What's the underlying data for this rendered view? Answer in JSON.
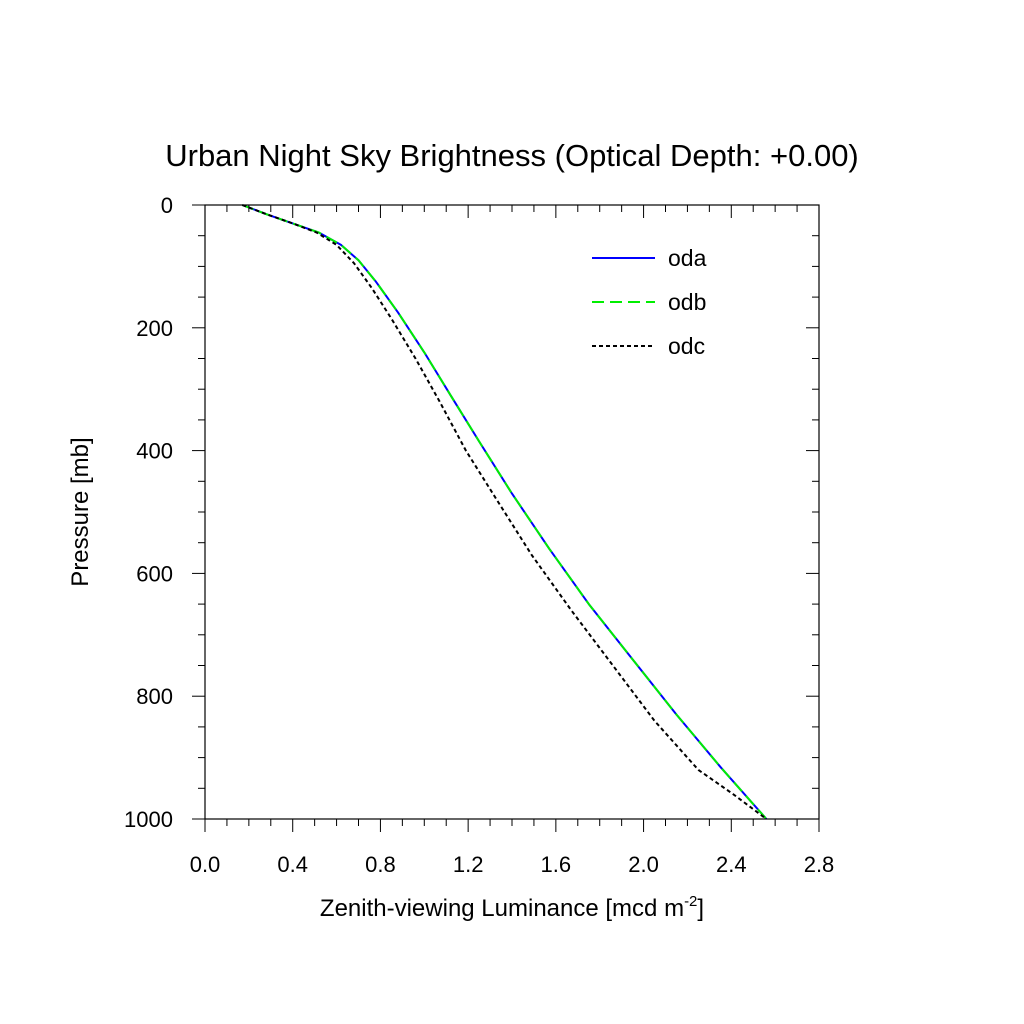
{
  "chart_data": {
    "type": "line",
    "title": "Urban Night Sky Brightness (Optical Depth: +0.00)",
    "xlabel": {
      "main": "Zenith-viewing Luminance [mcd m",
      "sup": "-2",
      "end": "]"
    },
    "ylabel": "Pressure [mb]",
    "xlim": [
      0.0,
      2.8
    ],
    "ylim": [
      0,
      1000
    ],
    "y_reversed": true,
    "x_ticks": [
      "0.0",
      "0.4",
      "0.8",
      "1.2",
      "1.6",
      "2.0",
      "2.4",
      "2.8"
    ],
    "y_ticks": [
      "0",
      "200",
      "400",
      "600",
      "800",
      "1000"
    ],
    "grid": false,
    "legend_position": "top-right",
    "series": [
      {
        "name": "oda",
        "color": "#0000ff",
        "dash": "solid",
        "points": [
          [
            0.17,
            0
          ],
          [
            0.28,
            15
          ],
          [
            0.4,
            30
          ],
          [
            0.52,
            45
          ],
          [
            0.62,
            65
          ],
          [
            0.7,
            90
          ],
          [
            0.78,
            125
          ],
          [
            0.88,
            175
          ],
          [
            1.0,
            240
          ],
          [
            1.12,
            310
          ],
          [
            1.25,
            385
          ],
          [
            1.4,
            470
          ],
          [
            1.57,
            560
          ],
          [
            1.75,
            650
          ],
          [
            1.95,
            740
          ],
          [
            2.15,
            830
          ],
          [
            2.35,
            915
          ],
          [
            2.56,
            1000
          ]
        ]
      },
      {
        "name": "odb",
        "color": "#00ee00",
        "dash": "dashed",
        "points": [
          [
            0.17,
            0
          ],
          [
            0.28,
            15
          ],
          [
            0.4,
            30
          ],
          [
            0.52,
            45
          ],
          [
            0.62,
            65
          ],
          [
            0.7,
            90
          ],
          [
            0.78,
            125
          ],
          [
            0.88,
            175
          ],
          [
            1.0,
            240
          ],
          [
            1.12,
            310
          ],
          [
            1.25,
            385
          ],
          [
            1.4,
            470
          ],
          [
            1.57,
            560
          ],
          [
            1.75,
            650
          ],
          [
            1.95,
            740
          ],
          [
            2.15,
            830
          ],
          [
            2.35,
            915
          ],
          [
            2.56,
            1000
          ]
        ]
      },
      {
        "name": "odc",
        "color": "#000000",
        "dash": "dotted",
        "points": [
          [
            0.17,
            0
          ],
          [
            0.28,
            15
          ],
          [
            0.4,
            30
          ],
          [
            0.51,
            45
          ],
          [
            0.6,
            65
          ],
          [
            0.68,
            95
          ],
          [
            0.76,
            135
          ],
          [
            0.85,
            185
          ],
          [
            0.96,
            250
          ],
          [
            1.07,
            320
          ],
          [
            1.19,
            400
          ],
          [
            1.33,
            480
          ],
          [
            1.49,
            570
          ],
          [
            1.67,
            660
          ],
          [
            1.86,
            750
          ],
          [
            2.05,
            840
          ],
          [
            2.25,
            920
          ],
          [
            2.41,
            960
          ],
          [
            2.56,
            1000
          ]
        ]
      }
    ]
  }
}
